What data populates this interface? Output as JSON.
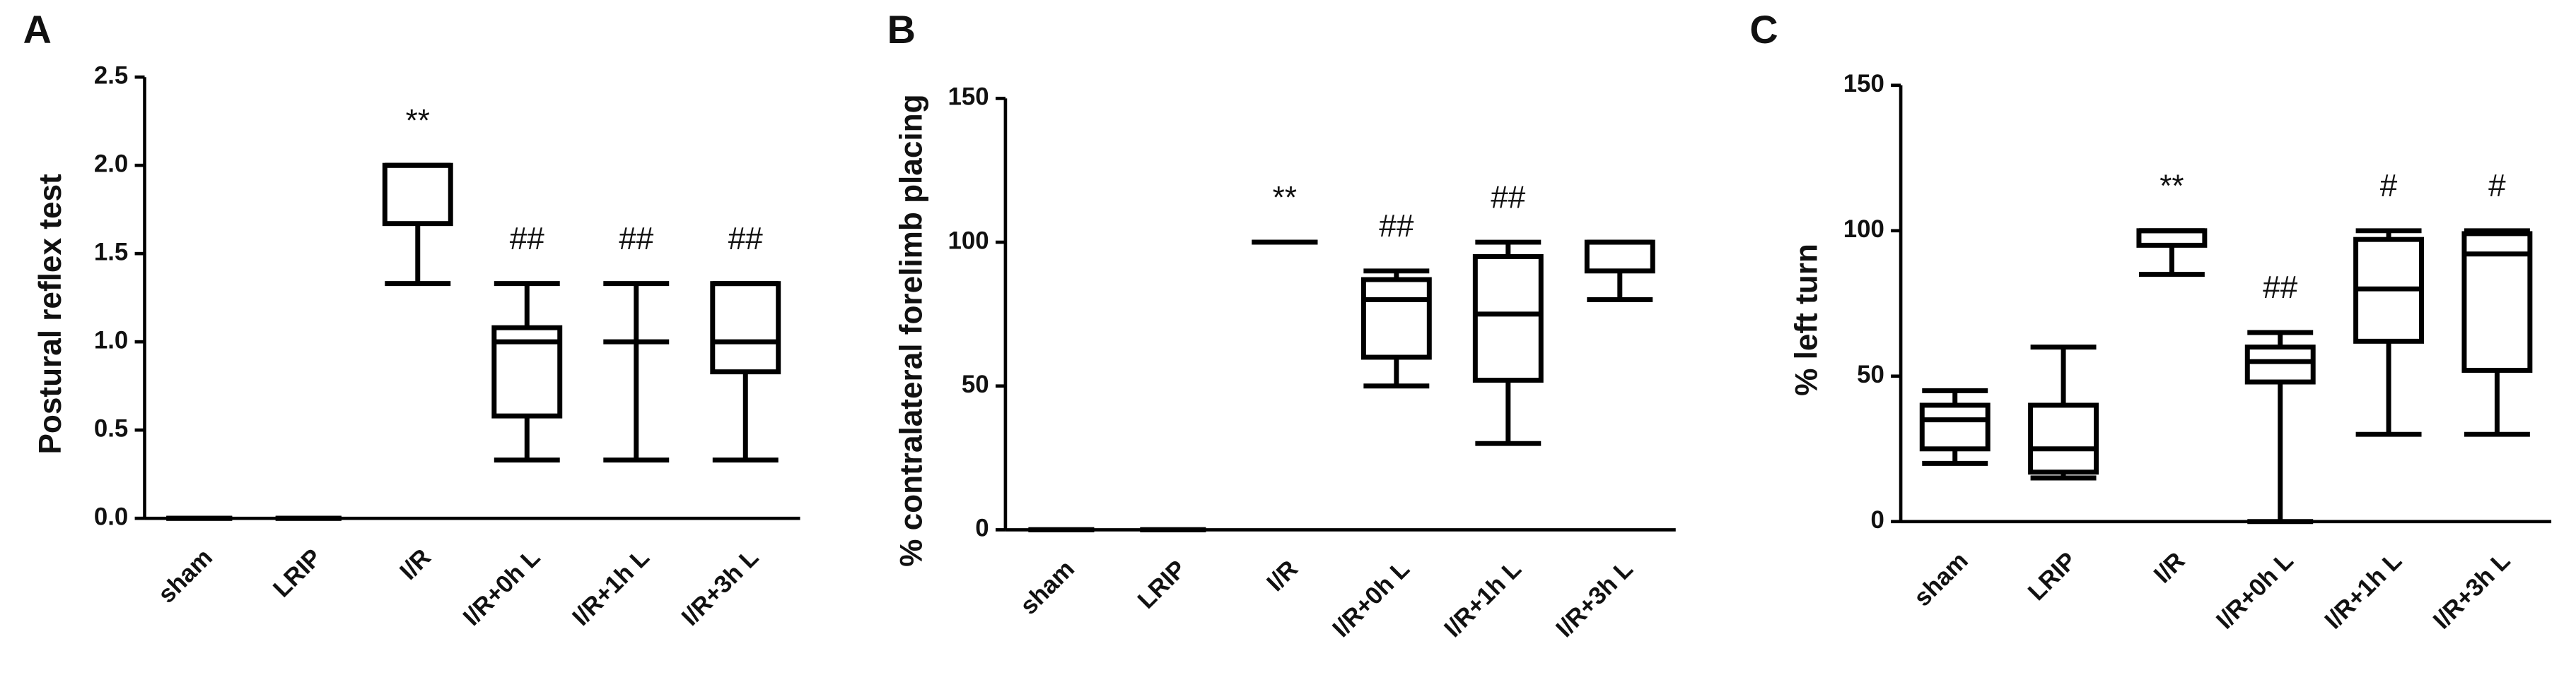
{
  "chart_data": [
    {
      "type": "box",
      "panel": "A",
      "ylabel": "Postural reflex test",
      "categories": [
        "sham",
        "LRIP",
        "I/R",
        "I/R+0h L",
        "I/R+1h L",
        "I/R+3h L"
      ],
      "min": [
        0,
        0,
        1.33,
        0.33,
        0.33,
        0.33
      ],
      "q1": [
        0,
        0,
        1.67,
        0.58,
        1.0,
        0.83
      ],
      "median": [
        0,
        0,
        2.0,
        1.0,
        1.0,
        1.0
      ],
      "q3": [
        0,
        0,
        2.0,
        1.08,
        1.0,
        1.33
      ],
      "max": [
        0,
        0,
        2.0,
        1.33,
        1.33,
        1.33
      ],
      "annotations": [
        null,
        null,
        "**",
        "##",
        "##",
        "##"
      ],
      "color": "#000000",
      "ylim": [
        0,
        2.5
      ],
      "yticks": [
        {
          "value": 0,
          "label": "0.0"
        },
        0.5,
        {
          "value": 1,
          "label": "1.0"
        },
        1.5,
        {
          "value": 2,
          "label": "2.0"
        },
        2.5
      ]
    },
    {
      "type": "box",
      "panel": "B",
      "ylabel": "% contralateral forelimb placing",
      "categories": [
        "sham",
        "LRIP",
        "I/R",
        "I/R+0h L",
        "I/R+1h L",
        "I/R+3h L"
      ],
      "min": [
        0,
        0,
        100,
        50,
        30,
        80
      ],
      "q1": [
        0,
        0,
        100,
        60,
        52,
        90
      ],
      "median": [
        0,
        0,
        100,
        80,
        75,
        100
      ],
      "q3": [
        0,
        0,
        100,
        87,
        95,
        100
      ],
      "max": [
        0,
        0,
        100,
        90,
        100,
        100
      ],
      "annotations": [
        null,
        null,
        "**",
        "##",
        "##",
        null
      ],
      "color": "#000000",
      "ylim": [
        0,
        150
      ],
      "yticks": [
        0,
        50,
        100,
        150
      ]
    },
    {
      "type": "box",
      "panel": "C",
      "ylabel": "% left turn",
      "categories": [
        "sham",
        "LRIP",
        "I/R",
        "I/R+0h L",
        "I/R+1h L",
        "I/R+3h L"
      ],
      "min": [
        20,
        15,
        85,
        0,
        30,
        30
      ],
      "q1": [
        25,
        17,
        95,
        48,
        62,
        52
      ],
      "median": [
        35,
        25,
        100,
        55,
        80,
        92
      ],
      "q3": [
        40,
        40,
        100,
        60,
        97,
        99
      ],
      "max": [
        45,
        60,
        100,
        65,
        100,
        100
      ],
      "annotations": [
        null,
        null,
        "**",
        "##",
        "#",
        "#"
      ],
      "color": "#000000",
      "ylim": [
        0,
        150
      ],
      "yticks": [
        0,
        50,
        100,
        150
      ]
    }
  ]
}
